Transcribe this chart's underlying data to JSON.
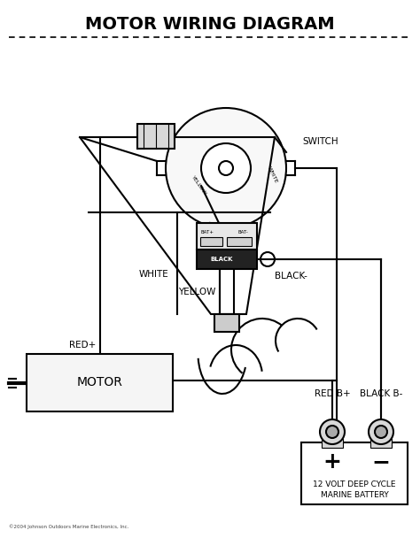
{
  "title": "MOTOR WIRING DIAGRAM",
  "title_fontsize": 14,
  "bg_color": "#ffffff",
  "line_color": "#000000",
  "copyright": "©2004 Johnson Outdoors Marine Electronics, Inc.",
  "switch_label": "SWITCH",
  "red_plus_label": "RED+",
  "white_label": "WHITE",
  "yellow_label": "YELLOW",
  "black_minus_label": "BLACK-",
  "red_b_plus_label": "RED B+",
  "black_b_minus_label": "BLACK B-",
  "motor_label": "MOTOR",
  "battery_label1": "12 VOLT DEEP CYCLE",
  "battery_label2": "MARINE BATTERY",
  "plus_label": "+",
  "minus_label": "−"
}
